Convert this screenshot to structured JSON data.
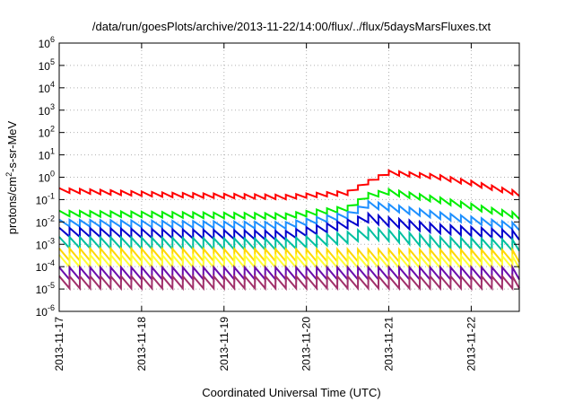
{
  "chart_data": {
    "type": "line",
    "title": "/data/run/goesPlots/archive/2013-11-22/14:00/flux/../flux/5daysMarsFluxes.txt",
    "xlabel": "Coordinated Universal Time (UTC)",
    "ylabel_base": "protons/cm",
    "ylabel_sup": "2",
    "ylabel_rest": "-s-sr-MeV",
    "log_y": true,
    "ylim": [
      1e-06,
      1000000.0
    ],
    "xlim": [
      "2013-11-17 00:00",
      "2013-11-22 14:00"
    ],
    "y_ticks": [
      {
        "base": "10",
        "exp": "-6"
      },
      {
        "base": "10",
        "exp": "-5"
      },
      {
        "base": "10",
        "exp": "-4"
      },
      {
        "base": "10",
        "exp": "-3"
      },
      {
        "base": "10",
        "exp": "-2"
      },
      {
        "base": "10",
        "exp": "-1"
      },
      {
        "base": "10",
        "exp": "0"
      },
      {
        "base": "10",
        "exp": "1"
      },
      {
        "base": "10",
        "exp": "2"
      },
      {
        "base": "10",
        "exp": "3"
      },
      {
        "base": "10",
        "exp": "4"
      },
      {
        "base": "10",
        "exp": "5"
      },
      {
        "base": "10",
        "exp": "6"
      }
    ],
    "x_ticks": [
      "2013-11-17",
      "2013-11-18",
      "2013-11-19",
      "2013-11-20",
      "2013-11-21",
      "2013-11-22"
    ],
    "grid": true,
    "sample_interval_hours": 3,
    "series": [
      {
        "color": "#ff0000",
        "ppl": "time-series",
        "knots": [
          [
            0,
            0.26
          ],
          [
            33,
            0.16
          ],
          [
            66,
            0.13
          ],
          [
            84,
            0.2
          ],
          [
            90,
            0.6
          ],
          [
            96,
            1.6
          ],
          [
            110,
            1.05
          ],
          [
            120,
            0.55
          ],
          [
            134,
            0.18
          ]
        ],
        "amp": 0.2,
        "pre_burst": 90
      },
      {
        "color": "#00ee00",
        "knots": [
          [
            0,
            0.024
          ],
          [
            66,
            0.018
          ],
          [
            84,
            0.04
          ],
          [
            90,
            0.15
          ],
          [
            96,
            0.22
          ],
          [
            110,
            0.1
          ],
          [
            134,
            0.018
          ]
        ],
        "amp": 0.25
      },
      {
        "color": "#1e90ff",
        "knots": [
          [
            0,
            0.009
          ],
          [
            66,
            0.007
          ],
          [
            84,
            0.02
          ],
          [
            90,
            0.06
          ],
          [
            96,
            0.045
          ],
          [
            110,
            0.02
          ],
          [
            134,
            0.006
          ]
        ],
        "amp": 0.3
      },
      {
        "color": "#0000cd",
        "knots": [
          [
            0,
            0.0035
          ],
          [
            66,
            0.0025
          ],
          [
            84,
            0.008
          ],
          [
            90,
            0.015
          ],
          [
            96,
            0.01
          ],
          [
            110,
            0.005
          ],
          [
            134,
            0.0025
          ]
        ],
        "amp": 0.4
      },
      {
        "color": "#00c0a0",
        "knots": [
          [
            0,
            0.0012
          ],
          [
            66,
            0.001
          ],
          [
            84,
            0.002
          ],
          [
            90,
            0.003
          ],
          [
            96,
            0.0025
          ],
          [
            110,
            0.0012
          ],
          [
            134,
            0.0009
          ]
        ],
        "amp": 0.5
      },
      {
        "color": "#ffd700",
        "knots": [
          [
            0,
            0.00035
          ],
          [
            134,
            0.0003
          ]
        ],
        "amp": 0.55
      },
      {
        "color": "#ffff33",
        "knots": [
          [
            0,
            0.00018
          ],
          [
            134,
            0.00016
          ]
        ],
        "amp": 0.55
      },
      {
        "color": "#6a0dad",
        "knots": [
          [
            0,
            5e-05
          ],
          [
            134,
            5e-05
          ]
        ],
        "amp": 0.55
      },
      {
        "color": "#a0306a",
        "knots": [
          [
            0,
            2e-05
          ],
          [
            134,
            2e-05
          ]
        ],
        "amp": 0.55
      }
    ]
  }
}
